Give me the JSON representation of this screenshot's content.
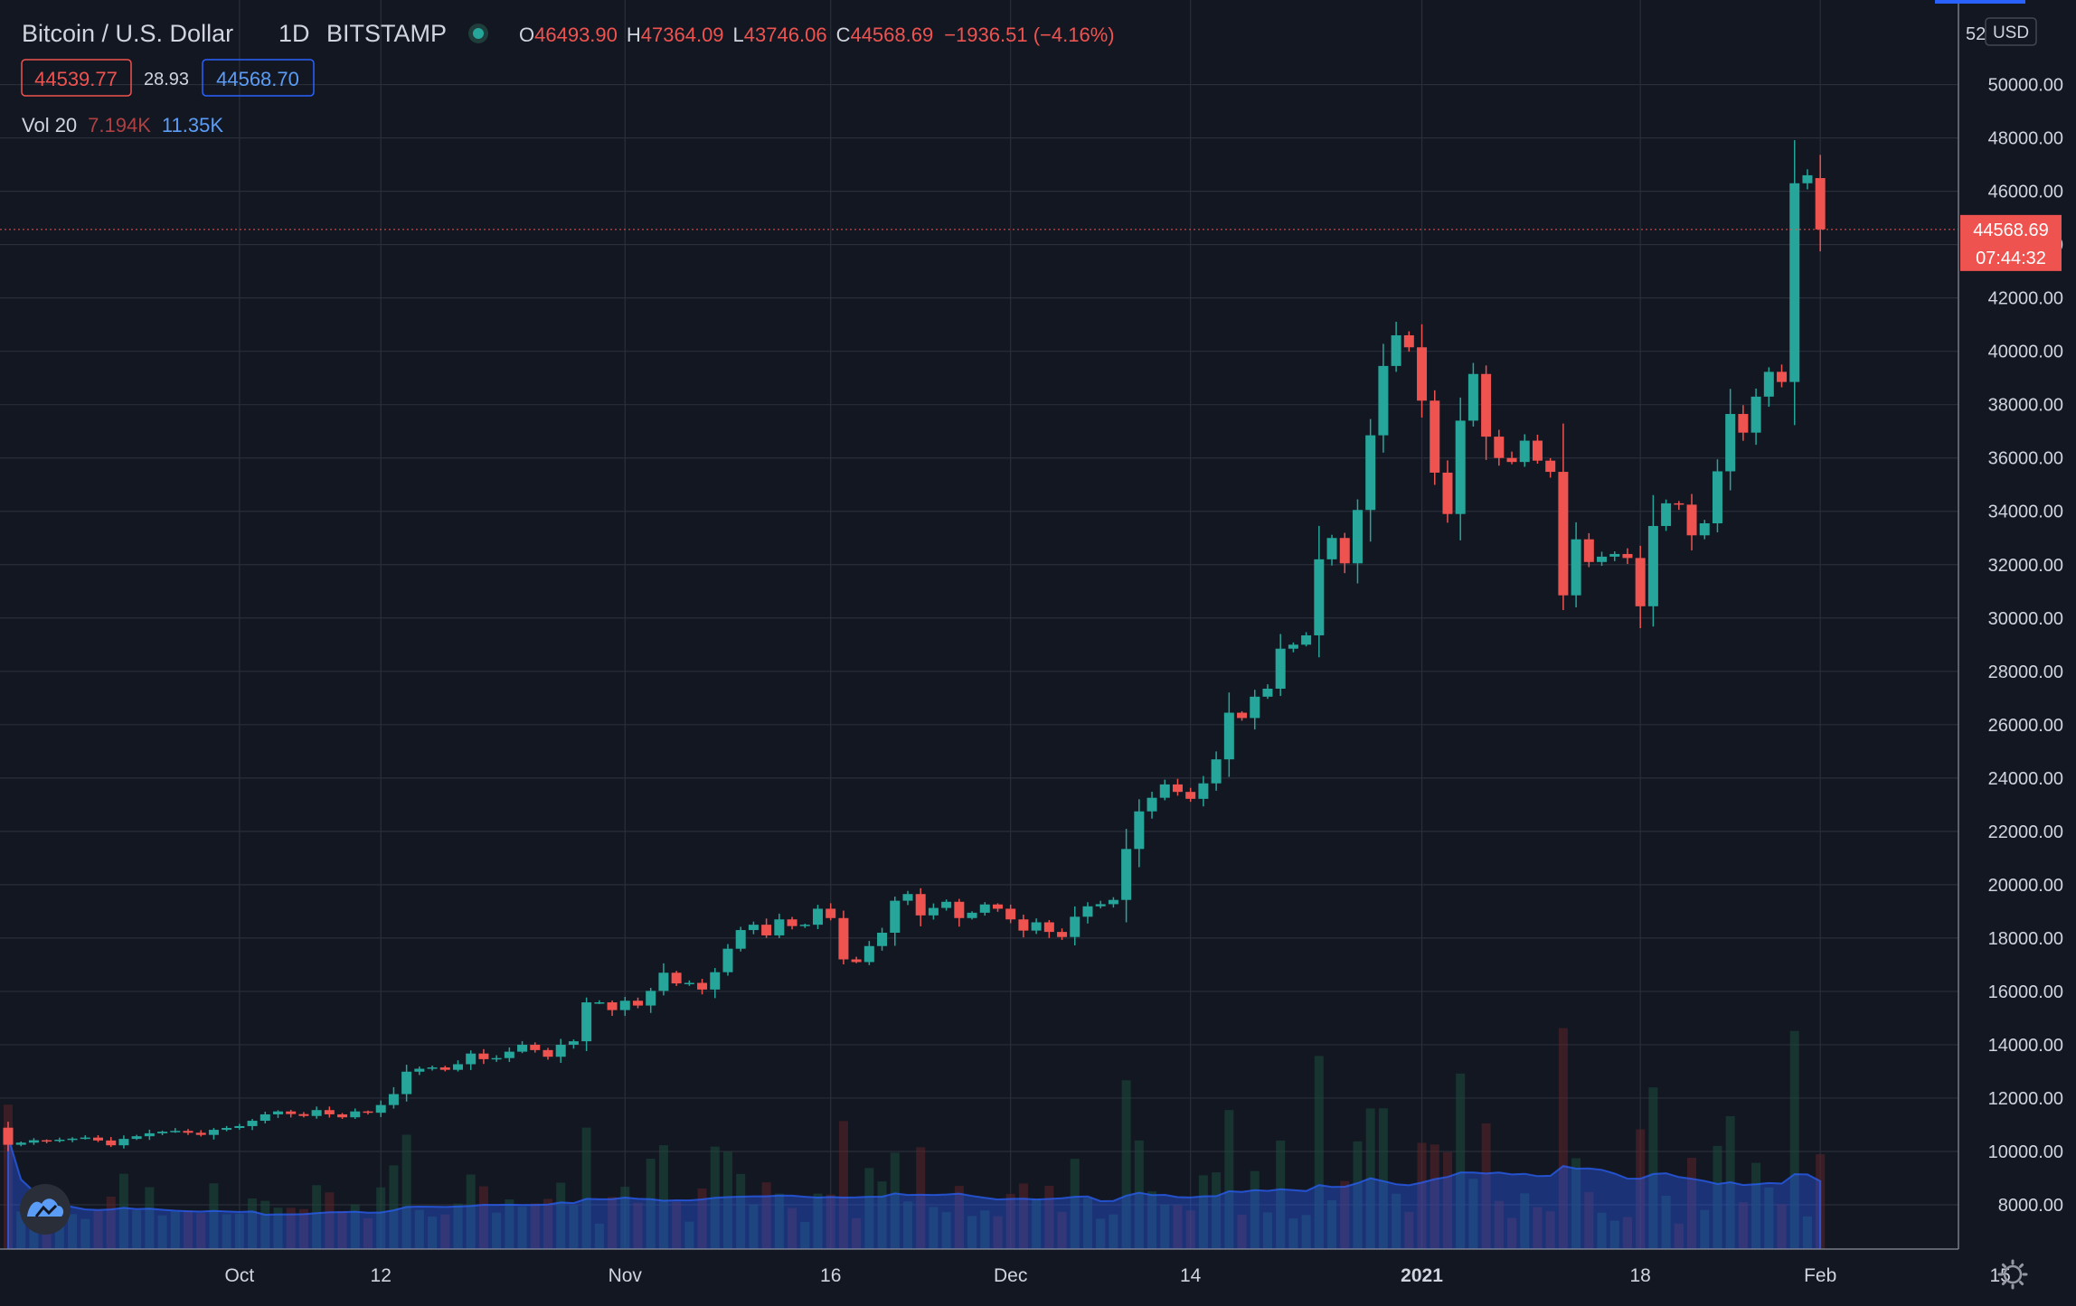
{
  "legend": {
    "symbol": "Bitcoin / U.S. Dollar",
    "interval": "1D",
    "exchange": "BITSTAMP",
    "o_label": "O",
    "o_value": "46493.90",
    "h_label": "H",
    "h_value": "47364.09",
    "l_label": "L",
    "l_value": "43746.06",
    "c_label": "C",
    "c_value": "44568.69",
    "change": "−1936.51 (−4.16%)",
    "bid": "44539.77",
    "spread": "28.93",
    "ask": "44568.70",
    "vol_label": "Vol 20",
    "vol_value": "7.194K",
    "vol_ma": "11.35K"
  },
  "axis": {
    "currency": "USD",
    "top_partial": "52",
    "current_price": "44568.69",
    "countdown": "07:44:32",
    "x_labels": [
      "Oct",
      "12",
      "Nov",
      "16",
      "Dec",
      "14",
      "2021",
      "18",
      "Feb",
      "15"
    ]
  },
  "colors": {
    "background": "#131722",
    "up": "#26a69a",
    "down": "#ef5350",
    "grid": "#2a2e39",
    "text": "#d1d4dc",
    "volume_ma": "#2962ff"
  },
  "chart_data": {
    "type": "candlestick",
    "interval": "1D",
    "x_start": "2020-09-13",
    "x_end": "2021-02-09",
    "y_axis_ticks": [
      8000,
      10000,
      12000,
      14000,
      16000,
      18000,
      20000,
      22000,
      24000,
      26000,
      28000,
      30000,
      32000,
      34000,
      36000,
      38000,
      40000,
      42000,
      44000,
      46000,
      48000,
      50000
    ],
    "ylim": [
      6500,
      52000
    ],
    "closes": [
      10250,
      10330,
      10420,
      10400,
      10440,
      10480,
      10520,
      10410,
      10230,
      10470,
      10570,
      10680,
      10740,
      10770,
      10700,
      10620,
      10810,
      10880,
      10950,
      11150,
      11390,
      11500,
      11400,
      11330,
      11550,
      11390,
      11280,
      11500,
      11450,
      11740,
      12150,
      12990,
      13100,
      13150,
      13060,
      13270,
      13670,
      13460,
      13500,
      13740,
      14000,
      13800,
      13550,
      14000,
      14130,
      15590,
      15590,
      15300,
      15650,
      15470,
      16020,
      16700,
      16300,
      16320,
      16070,
      16720,
      17600,
      18300,
      18500,
      18100,
      18700,
      18450,
      18500,
      19100,
      18750,
      17200,
      17100,
      17700,
      18200,
      19400,
      19650,
      18850,
      19130,
      19360,
      18750,
      18950,
      19260,
      19100,
      18700,
      18280,
      18590,
      18230,
      18040,
      18800,
      19190,
      19270,
      19430,
      21340,
      22750,
      23260,
      23760,
      23480,
      23220,
      23800,
      24700,
      26450,
      26250,
      27050,
      27350,
      28850,
      29000,
      29350,
      32200,
      33000,
      32050,
      34050,
      36850,
      39450,
      40600,
      40150,
      38150,
      35450,
      33900,
      37400,
      39150,
      36800,
      36000,
      35850,
      36650,
      35900,
      35480,
      30850,
      32950,
      32100,
      32300,
      32400,
      32250,
      30440,
      33450,
      34300,
      34250,
      33100,
      33550,
      35500,
      37650,
      36950,
      38300,
      39230,
      38850,
      46300,
      46600,
      44570
    ],
    "volume_ma_top": 11350,
    "current_close": 44568.69
  }
}
